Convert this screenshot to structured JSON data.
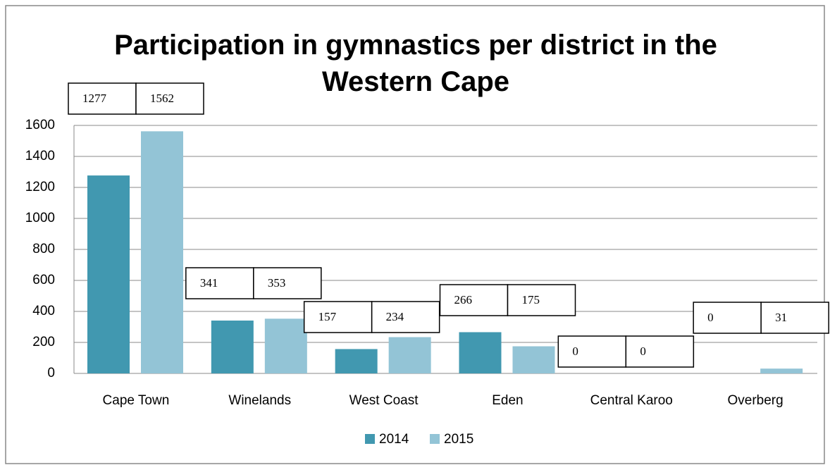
{
  "chart_data": {
    "type": "bar",
    "title": "Participation in gymnastics per district in the Western Cape",
    "categories": [
      "Cape Town",
      "Winelands",
      "West Coast",
      "Eden",
      "Central Karoo",
      "Overberg"
    ],
    "series": [
      {
        "name": "2014",
        "color": "#4198b0",
        "values": [
          1277,
          341,
          157,
          266,
          0,
          0
        ]
      },
      {
        "name": "2015",
        "color": "#93c4d6",
        "values": [
          1562,
          353,
          234,
          175,
          0,
          31
        ]
      }
    ],
    "ylim": [
      0,
      1600
    ],
    "yticks": [
      0,
      200,
      400,
      600,
      800,
      1000,
      1200,
      1400,
      1600
    ],
    "grid": true,
    "legend": "bottom"
  }
}
